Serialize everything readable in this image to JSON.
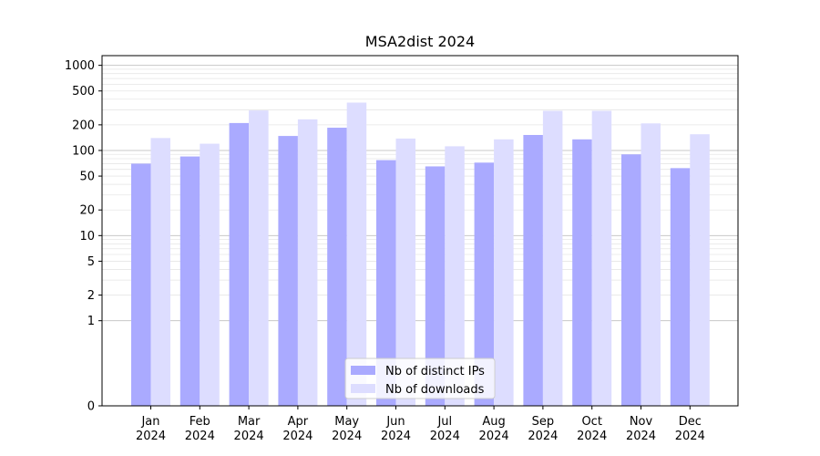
{
  "chart_data": {
    "type": "bar",
    "title": "MSA2dist 2024",
    "categories": [
      "Jan\n2024",
      "Feb\n2024",
      "Mar\n2024",
      "Apr\n2024",
      "May\n2024",
      "Jun\n2024",
      "Jul\n2024",
      "Aug\n2024",
      "Sep\n2024",
      "Oct\n2024",
      "Nov\n2024",
      "Dec\n2024"
    ],
    "series": [
      {
        "name": "Nb of distinct IPs",
        "color": "#aaaaff",
        "values": [
          70,
          85,
          210,
          148,
          185,
          77,
          65,
          72,
          152,
          135,
          90,
          62
        ]
      },
      {
        "name": "Nb of downloads",
        "color": "#ddddff",
        "values": [
          140,
          120,
          295,
          232,
          365,
          138,
          112,
          135,
          292,
          292,
          208,
          155
        ]
      }
    ],
    "yscale": "symlog",
    "yticks": [
      0,
      1,
      2,
      5,
      10,
      20,
      50,
      100,
      200,
      500,
      1000
    ],
    "ylim": [
      0,
      1300
    ],
    "grid": true,
    "legend_position": "bottom-center"
  }
}
